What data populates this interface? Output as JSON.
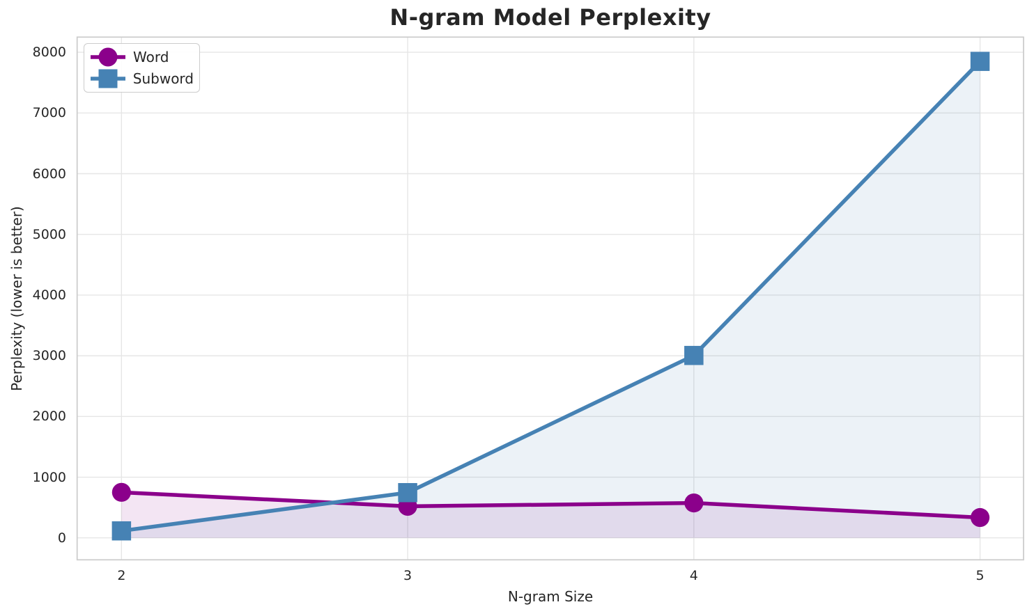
{
  "chart_data": {
    "type": "line",
    "title": "N-gram Model Perplexity",
    "xlabel": "N-gram Size",
    "ylabel": "Perplexity (lower is better)",
    "x": [
      2,
      3,
      4,
      5
    ],
    "xtick_labels": [
      "2",
      "3",
      "4",
      "5"
    ],
    "yticks": [
      0,
      1000,
      2000,
      3000,
      4000,
      5000,
      6000,
      7000,
      8000
    ],
    "ytick_labels": [
      "0",
      "1000",
      "2000",
      "3000",
      "4000",
      "5000",
      "6000",
      "7000",
      "8000"
    ],
    "xlim": [
      1.845,
      5.152
    ],
    "ylim": [
      -362,
      8250
    ],
    "grid": true,
    "legend_position": "upper left",
    "series": [
      {
        "name": "Word",
        "marker": "circle",
        "color": "#8B008B",
        "fill_alpha": 0.1,
        "values": [
          750,
          520,
          575,
          335
        ]
      },
      {
        "name": "Subword",
        "marker": "square",
        "color": "#4682B4",
        "fill_alpha": 0.1,
        "values": [
          115,
          745,
          3005,
          7850
        ]
      }
    ],
    "colors": {
      "text": "#262626",
      "grid": "#E6E6E6",
      "spine": "#CBCBCB",
      "background": "#FFFFFF"
    }
  }
}
